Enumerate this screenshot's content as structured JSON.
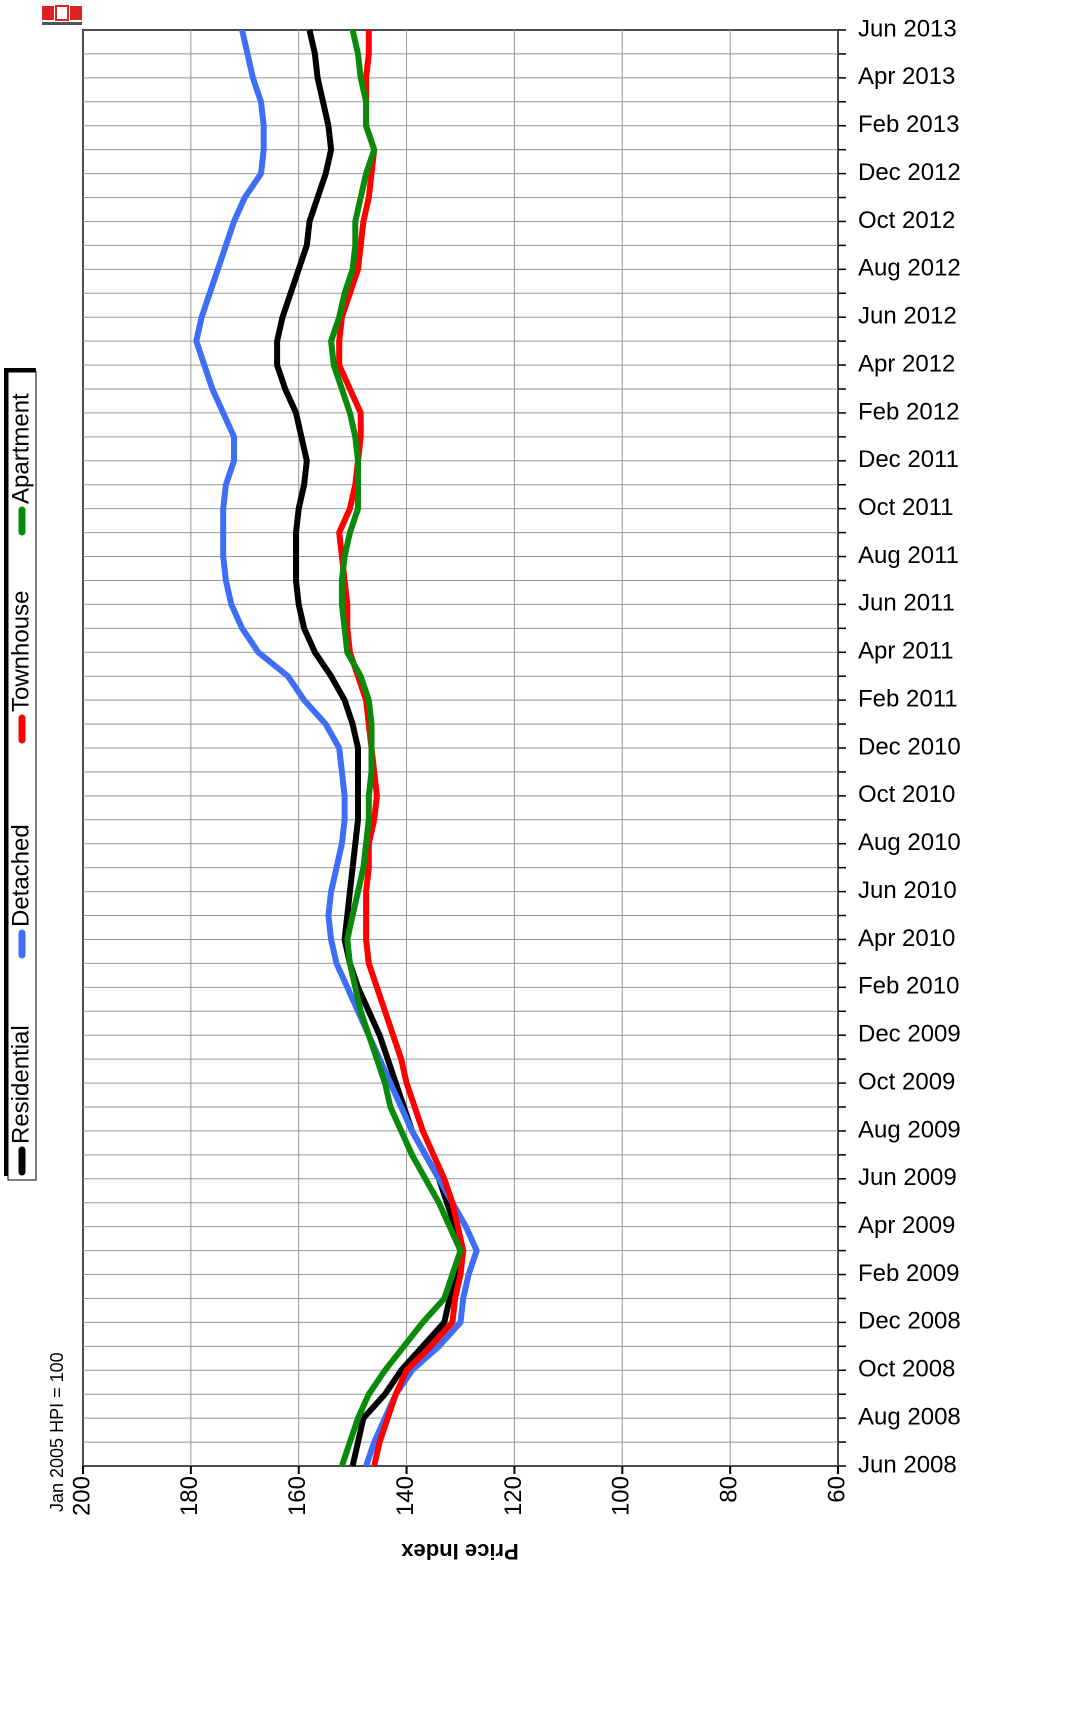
{
  "chart_data": {
    "type": "line",
    "annotation": "Jan 2005 HPI = 100",
    "xlabel": "Price Index",
    "xlim": [
      200,
      60
    ],
    "xticks": [
      200,
      180,
      160,
      140,
      120,
      100,
      80,
      60
    ],
    "categories": [
      "Jun 2008",
      null,
      "Aug 2008",
      null,
      "Oct 2008",
      null,
      "Dec 2008",
      null,
      "Feb 2009",
      null,
      "Apr 2009",
      null,
      "Jun 2009",
      null,
      "Aug 2009",
      null,
      "Oct 2009",
      null,
      "Dec 2009",
      null,
      "Feb 2010",
      null,
      "Apr 2010",
      null,
      "Jun 2010",
      null,
      "Aug 2010",
      null,
      "Oct 2010",
      null,
      "Dec 2010",
      null,
      "Feb 2011",
      null,
      "Apr 2011",
      null,
      "Jun 2011",
      null,
      "Aug 2011",
      null,
      "Oct 2011",
      null,
      "Dec 2011",
      null,
      "Feb 2012",
      null,
      "Apr 2012",
      null,
      "Jun 2012",
      null,
      "Aug 2012",
      null,
      "Oct 2012",
      null,
      "Dec 2012",
      null,
      "Feb 2013",
      null,
      "Apr 2013",
      null,
      "Jun 2013"
    ],
    "grid": true,
    "series": [
      {
        "name": "Residential",
        "color": "#000000",
        "values": [
          150,
          149,
          148,
          144,
          141,
          137,
          133,
          132,
          131,
          129.5,
          131,
          132.5,
          134,
          136.5,
          139,
          140.5,
          142,
          143.5,
          145,
          147,
          149,
          150.5,
          151.5,
          151,
          150.5,
          150,
          149.5,
          149,
          149,
          149,
          149,
          150,
          151.5,
          154,
          157,
          159,
          160,
          160.5,
          160.5,
          160.5,
          160,
          159,
          158.5,
          159.5,
          160.5,
          162.5,
          164,
          164,
          163,
          161.5,
          160,
          158.5,
          158,
          156.5,
          155,
          154,
          154.5,
          155.5,
          156.5,
          157,
          158
        ]
      },
      {
        "name": "Detached",
        "color": "#3d6ef5",
        "values": [
          147.5,
          146,
          144,
          142,
          139,
          134,
          130,
          129.5,
          128.5,
          127,
          129,
          131.5,
          134,
          136.5,
          139,
          141,
          143,
          145,
          147,
          149,
          151,
          153,
          154,
          154.5,
          154,
          153,
          152,
          151.5,
          151.5,
          152,
          152.5,
          155,
          159,
          162,
          167.5,
          170.5,
          172.5,
          173.5,
          174,
          174,
          174,
          173.5,
          172,
          172,
          174,
          176,
          177.5,
          179,
          178,
          176.5,
          175,
          173.5,
          172,
          170,
          167,
          166.5,
          166.5,
          167,
          168.5,
          169.5,
          170.5
        ]
      },
      {
        "name": "Townhouse",
        "color": "#ff0000",
        "values": [
          146,
          145,
          143.5,
          142,
          140,
          135.5,
          131.5,
          131,
          130,
          129.5,
          130.5,
          131.5,
          133,
          135,
          137,
          138.5,
          140,
          141,
          142.5,
          144,
          145.5,
          147,
          147.5,
          147.5,
          147.5,
          147,
          147,
          146,
          145.5,
          146,
          146.5,
          147,
          147.5,
          149,
          150.5,
          151,
          151,
          151.5,
          152,
          152.5,
          150.5,
          149.5,
          149,
          148.5,
          148.5,
          150.5,
          152.5,
          152.5,
          152,
          150.5,
          149,
          148.5,
          148,
          147,
          146.5,
          146,
          147.5,
          147.5,
          147.5,
          147,
          147
        ]
      },
      {
        "name": "Apartment",
        "color": "#0a8a0a",
        "values": [
          152,
          150.5,
          149,
          147,
          144,
          140.5,
          137,
          133,
          131.5,
          130,
          132,
          134,
          136.5,
          139,
          141,
          143,
          144,
          145.5,
          147,
          148.5,
          149.5,
          150.5,
          151,
          150,
          149,
          148,
          147.5,
          147,
          147,
          146.5,
          146.5,
          146.5,
          147,
          148.5,
          151,
          151.5,
          152,
          152,
          151.5,
          150.5,
          149,
          149,
          149,
          149.5,
          150.5,
          152,
          153.5,
          154,
          152.5,
          151.5,
          150,
          149.5,
          149.5,
          148.5,
          147.5,
          146,
          147.5,
          147.5,
          148.5,
          149,
          150
        ]
      }
    ]
  }
}
